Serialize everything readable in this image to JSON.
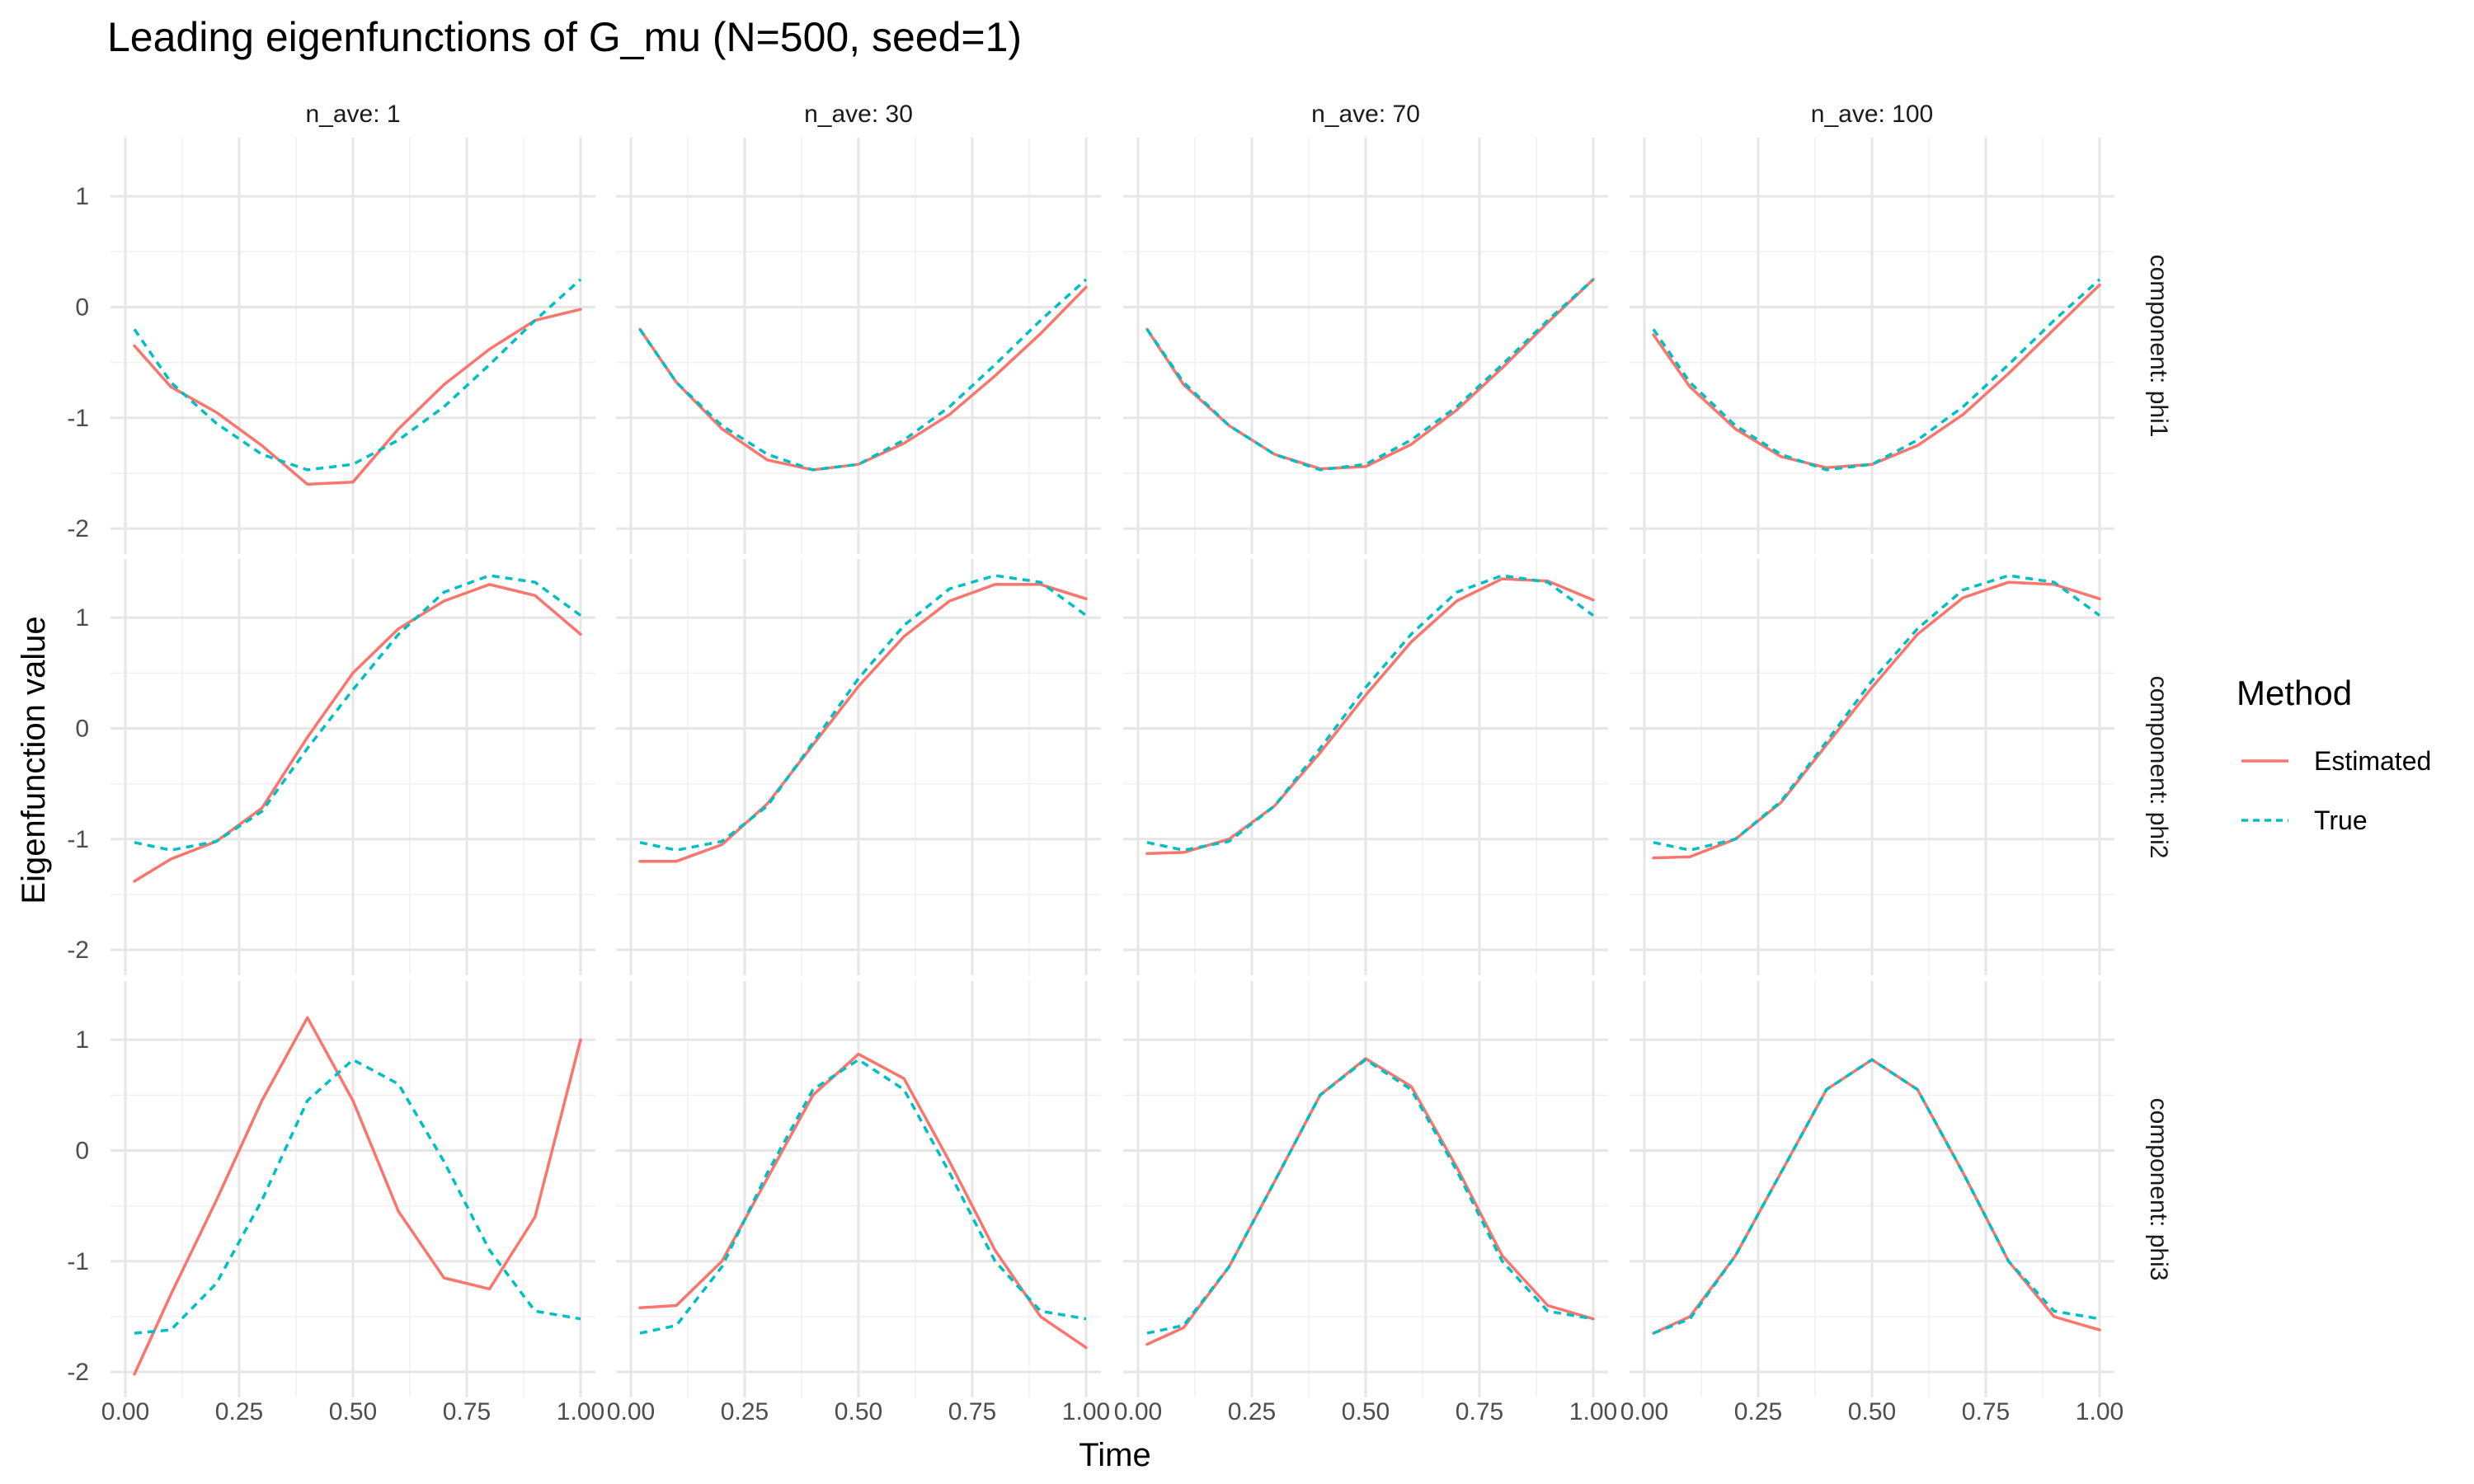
{
  "chart_data": {
    "type": "line",
    "title": "Leading eigenfunctions of G_mu (N=500, seed=1)",
    "xlabel": "Time",
    "ylabel": "Eigenfunction value",
    "xlim": [
      0,
      1
    ],
    "ylim": [
      -2.2,
      1.5
    ],
    "x_ticks": [
      "0.00",
      "0.25",
      "0.50",
      "0.75",
      "1.00"
    ],
    "y_ticks": [
      "-2",
      "-1",
      "0",
      "1"
    ],
    "columns": [
      "n_ave: 1",
      "n_ave: 30",
      "n_ave: 70",
      "n_ave: 100"
    ],
    "rows": [
      "component: phi1",
      "component: phi2",
      "component: phi3"
    ],
    "grid": true,
    "legend": {
      "title": "Method",
      "placement": "right",
      "entries": [
        {
          "name": "Estimated",
          "color": "#F8766D",
          "dash": "solid"
        },
        {
          "name": "True",
          "color": "#00BFC4",
          "dash": "dashed"
        }
      ]
    },
    "x": [
      0.02,
      0.1,
      0.2,
      0.3,
      0.4,
      0.5,
      0.6,
      0.7,
      0.8,
      0.9,
      1.0
    ],
    "panels": [
      {
        "column": "n_ave: 1",
        "row": "component: phi1",
        "series": [
          {
            "name": "Estimated",
            "values": [
              -0.35,
              -0.72,
              -0.95,
              -1.25,
              -1.6,
              -1.58,
              -1.1,
              -0.7,
              -0.38,
              -0.12,
              -0.02
            ]
          },
          {
            "name": "True",
            "values": [
              -0.2,
              -0.68,
              -1.05,
              -1.33,
              -1.47,
              -1.42,
              -1.2,
              -0.9,
              -0.52,
              -0.12,
              0.25
            ]
          }
        ]
      },
      {
        "column": "n_ave: 30",
        "row": "component: phi1",
        "series": [
          {
            "name": "Estimated",
            "values": [
              -0.2,
              -0.68,
              -1.1,
              -1.38,
              -1.47,
              -1.42,
              -1.23,
              -0.97,
              -0.62,
              -0.24,
              0.18
            ]
          },
          {
            "name": "True",
            "values": [
              -0.2,
              -0.68,
              -1.07,
              -1.33,
              -1.47,
              -1.42,
              -1.2,
              -0.9,
              -0.52,
              -0.12,
              0.25
            ]
          }
        ]
      },
      {
        "column": "n_ave: 70",
        "row": "component: phi1",
        "series": [
          {
            "name": "Estimated",
            "values": [
              -0.2,
              -0.7,
              -1.07,
              -1.33,
              -1.46,
              -1.44,
              -1.24,
              -0.93,
              -0.55,
              -0.14,
              0.25
            ]
          },
          {
            "name": "True",
            "values": [
              -0.2,
              -0.68,
              -1.07,
              -1.33,
              -1.47,
              -1.42,
              -1.2,
              -0.9,
              -0.52,
              -0.12,
              0.25
            ]
          }
        ]
      },
      {
        "column": "n_ave: 100",
        "row": "component: phi1",
        "series": [
          {
            "name": "Estimated",
            "values": [
              -0.25,
              -0.72,
              -1.1,
              -1.35,
              -1.45,
              -1.42,
              -1.25,
              -0.97,
              -0.6,
              -0.2,
              0.2
            ]
          },
          {
            "name": "True",
            "values": [
              -0.2,
              -0.68,
              -1.07,
              -1.33,
              -1.47,
              -1.42,
              -1.2,
              -0.9,
              -0.52,
              -0.12,
              0.25
            ]
          }
        ]
      },
      {
        "column": "n_ave: 1",
        "row": "component: phi2",
        "series": [
          {
            "name": "Estimated",
            "values": [
              -1.38,
              -1.18,
              -1.02,
              -0.72,
              -0.08,
              0.5,
              0.9,
              1.15,
              1.3,
              1.2,
              0.85
            ]
          },
          {
            "name": "True",
            "values": [
              -1.03,
              -1.1,
              -1.02,
              -0.75,
              -0.18,
              0.35,
              0.85,
              1.23,
              1.38,
              1.32,
              1.02
            ]
          }
        ]
      },
      {
        "column": "n_ave: 30",
        "row": "component: phi2",
        "series": [
          {
            "name": "Estimated",
            "values": [
              -1.2,
              -1.2,
              -1.05,
              -0.68,
              -0.15,
              0.38,
              0.83,
              1.15,
              1.3,
              1.3,
              1.17
            ]
          },
          {
            "name": "True",
            "values": [
              -1.03,
              -1.1,
              -1.02,
              -0.7,
              -0.13,
              0.45,
              0.93,
              1.26,
              1.38,
              1.32,
              1.02
            ]
          }
        ]
      },
      {
        "column": "n_ave: 70",
        "row": "component: phi2",
        "series": [
          {
            "name": "Estimated",
            "values": [
              -1.13,
              -1.12,
              -1.0,
              -0.7,
              -0.22,
              0.3,
              0.78,
              1.15,
              1.35,
              1.33,
              1.16
            ]
          },
          {
            "name": "True",
            "values": [
              -1.03,
              -1.1,
              -1.02,
              -0.7,
              -0.18,
              0.37,
              0.85,
              1.23,
              1.38,
              1.32,
              1.02
            ]
          }
        ]
      },
      {
        "column": "n_ave: 100",
        "row": "component: phi2",
        "series": [
          {
            "name": "Estimated",
            "values": [
              -1.17,
              -1.16,
              -1.0,
              -0.67,
              -0.15,
              0.37,
              0.85,
              1.18,
              1.32,
              1.3,
              1.17
            ]
          },
          {
            "name": "True",
            "values": [
              -1.03,
              -1.1,
              -1.0,
              -0.66,
              -0.12,
              0.43,
              0.9,
              1.25,
              1.38,
              1.32,
              1.02
            ]
          }
        ]
      },
      {
        "column": "n_ave: 1",
        "row": "component: phi3",
        "series": [
          {
            "name": "Estimated",
            "values": [
              -2.02,
              -1.3,
              -0.45,
              0.45,
              1.2,
              0.45,
              -0.55,
              -1.15,
              -1.25,
              -0.6,
              1.0
            ]
          },
          {
            "name": "True",
            "values": [
              -1.65,
              -1.62,
              -1.2,
              -0.45,
              0.45,
              0.82,
              0.6,
              -0.1,
              -0.9,
              -1.45,
              -1.52
            ]
          }
        ]
      },
      {
        "column": "n_ave: 30",
        "row": "component: phi3",
        "series": [
          {
            "name": "Estimated",
            "values": [
              -1.42,
              -1.4,
              -1.0,
              -0.25,
              0.5,
              0.87,
              0.65,
              -0.1,
              -0.9,
              -1.5,
              -1.78
            ]
          },
          {
            "name": "True",
            "values": [
              -1.65,
              -1.58,
              -1.05,
              -0.2,
              0.55,
              0.82,
              0.55,
              -0.2,
              -1.0,
              -1.45,
              -1.52
            ]
          }
        ]
      },
      {
        "column": "n_ave: 70",
        "row": "component: phi3",
        "series": [
          {
            "name": "Estimated",
            "values": [
              -1.75,
              -1.6,
              -1.05,
              -0.28,
              0.5,
              0.83,
              0.58,
              -0.15,
              -0.95,
              -1.4,
              -1.52
            ]
          },
          {
            "name": "True",
            "values": [
              -1.65,
              -1.58,
              -1.05,
              -0.28,
              0.5,
              0.82,
              0.55,
              -0.18,
              -1.0,
              -1.45,
              -1.52
            ]
          }
        ]
      },
      {
        "column": "n_ave: 100",
        "row": "component: phi3",
        "series": [
          {
            "name": "Estimated",
            "values": [
              -1.65,
              -1.5,
              -0.95,
              -0.2,
              0.55,
              0.82,
              0.55,
              -0.2,
              -1.0,
              -1.5,
              -1.62
            ]
          },
          {
            "name": "True",
            "values": [
              -1.65,
              -1.52,
              -0.95,
              -0.2,
              0.55,
              0.82,
              0.55,
              -0.2,
              -1.0,
              -1.45,
              -1.52
            ]
          }
        ]
      }
    ]
  }
}
